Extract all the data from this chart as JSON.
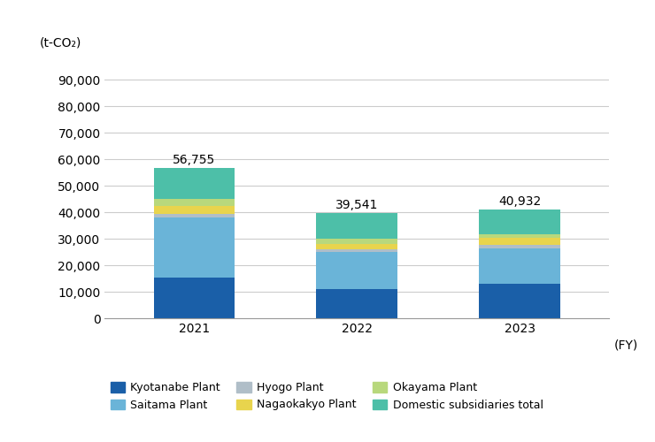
{
  "years": [
    "2021",
    "2022",
    "2023"
  ],
  "totals": [
    56755,
    39541,
    40932
  ],
  "segments": {
    "Kyotanabe Plant": [
      15500,
      11000,
      13000
    ],
    "Saitama Plant": [
      22500,
      14000,
      13500
    ],
    "Hyogo Plant": [
      1500,
      1000,
      1200
    ],
    "Nagaokakyo Plant": [
      3000,
      2000,
      2500
    ],
    "Okayama Plant": [
      2500,
      2000,
      1500
    ],
    "Domestic subsidiaries total": [
      11755,
      9541,
      9232
    ]
  },
  "colors": {
    "Kyotanabe Plant": "#1a5fa8",
    "Saitama Plant": "#6ab4d8",
    "Hyogo Plant": "#b0bec8",
    "Nagaokakyo Plant": "#e8d44d",
    "Okayama Plant": "#b8d87c",
    "Domestic subsidiaries total": "#4dbfa8"
  },
  "ylabel": "(t-CO₂)",
  "xlabel_fy": "(FY)",
  "ylim": [
    0,
    100000
  ],
  "yticks": [
    0,
    10000,
    20000,
    30000,
    40000,
    50000,
    60000,
    70000,
    80000,
    90000
  ],
  "ytick_labels": [
    "0",
    "10,000",
    "20,000",
    "30,000",
    "40,000",
    "50,000",
    "60,000",
    "70,000",
    "80,000",
    "90,000"
  ],
  "bar_width": 0.5,
  "background_color": "#ffffff",
  "grid_color": "#cccccc",
  "tick_fontsize": 10,
  "legend_fontsize": 9,
  "annot_fontsize": 10
}
